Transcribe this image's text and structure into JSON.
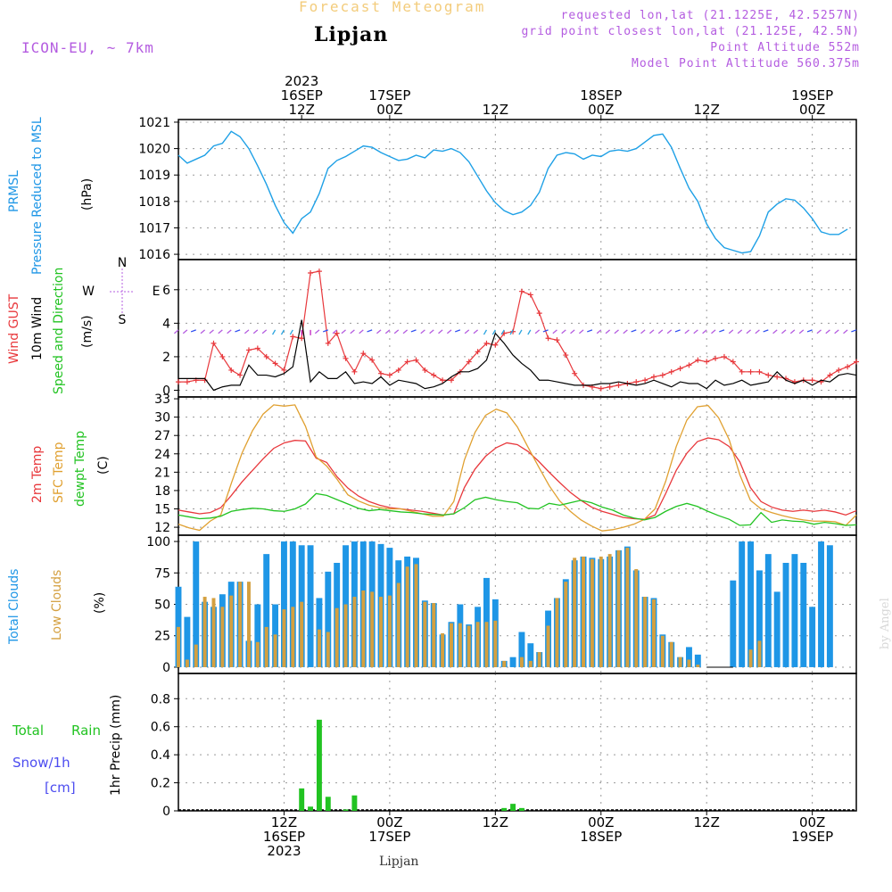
{
  "header": {
    "title": "Forecast Meteogram",
    "location": "Lipjan",
    "model": "ICON-EU, ~ 7km",
    "info": [
      "requested lon,lat (21.1225E, 42.5257N)",
      "grid point closest lon,lat (21.125E, 42.5N)",
      "Point Altitude 552m",
      "Model Point Altitude 560.375m"
    ],
    "watermark": "by Angel",
    "footer_location": "Lipjan"
  },
  "colors": {
    "pressure": "#1ea0e6",
    "gust": "#e8383c",
    "wind": "#000000",
    "temp2m": "#e8383c",
    "sfctemp": "#e0a030",
    "dewpt": "#22c322",
    "total_clouds": "#1e96e6",
    "low_clouds": "#d4a040",
    "rain": "#22c322",
    "snow": "#4c4cf0",
    "purple": "#b45ce0"
  },
  "time_axis_top": [
    {
      "x": 14,
      "lines": [
        "2023",
        "16SEP",
        "12Z"
      ]
    },
    {
      "x": 24,
      "lines": [
        "17SEP",
        "00Z"
      ]
    },
    {
      "x": 36,
      "lines": [
        "12Z"
      ]
    },
    {
      "x": 48,
      "lines": [
        "18SEP",
        "00Z"
      ]
    },
    {
      "x": 60,
      "lines": [
        "12Z"
      ]
    },
    {
      "x": 72,
      "lines": [
        "19SEP",
        "00Z"
      ]
    }
  ],
  "time_axis_bottom": [
    {
      "x": 12,
      "lines": [
        "12Z",
        "16SEP",
        "2023"
      ]
    },
    {
      "x": 24,
      "lines": [
        "00Z",
        "17SEP"
      ]
    },
    {
      "x": 36,
      "lines": [
        "12Z"
      ]
    },
    {
      "x": 48,
      "lines": [
        "00Z",
        "18SEP"
      ]
    },
    {
      "x": 60,
      "lines": [
        "12Z"
      ]
    },
    {
      "x": 72,
      "lines": [
        "00Z",
        "19SEP"
      ]
    }
  ],
  "panel_labels": {
    "pressure": [
      "PRMSL",
      "Pressure Reduced to MSL",
      "(hPa)"
    ],
    "wind": [
      "Wind GUST",
      "10m Wind",
      "Speed and Direction",
      "(m/s)"
    ],
    "compass": [
      "N",
      "S",
      "W",
      "E"
    ],
    "temp": [
      "2m Temp",
      "SFC Temp",
      "dewpt Temp",
      "(C)"
    ],
    "clouds": [
      "Total Clouds",
      "Low Clouds",
      "(%)"
    ],
    "precip": [
      "Total",
      "Rain",
      "Snow/1h",
      "[cm]",
      "1hr Precip (mm)"
    ]
  },
  "chart_data": [
    {
      "type": "line",
      "title": "PRMSL",
      "ylabel": "(hPa)",
      "ylim": [
        1015.8,
        1021.1
      ],
      "yticks": [
        1016,
        1017,
        1018,
        1019,
        1020,
        1021
      ],
      "xlim": [
        0,
        77
      ],
      "x": [
        0,
        1,
        2,
        3,
        4,
        5,
        6,
        7,
        8,
        9,
        10,
        11,
        12,
        13,
        14,
        15,
        16,
        17,
        18,
        19,
        20,
        21,
        22,
        23,
        24,
        25,
        26,
        27,
        28,
        29,
        30,
        31,
        32,
        33,
        34,
        35,
        36,
        37,
        38,
        39,
        40,
        41,
        42,
        43,
        44,
        45,
        46,
        47,
        48,
        49,
        50,
        51,
        52,
        53,
        54,
        55,
        56,
        57,
        58,
        59,
        60,
        61,
        62,
        63,
        64,
        65,
        66,
        67,
        68,
        69,
        70,
        71,
        72,
        73,
        74,
        75,
        76
      ],
      "series": [
        {
          "name": "PRMSL",
          "values": [
            1019.75,
            1019.45,
            1019.6,
            1019.75,
            1020.1,
            1020.2,
            1020.65,
            1020.45,
            1020.0,
            1019.35,
            1018.65,
            1017.85,
            1017.2,
            1016.8,
            1017.35,
            1017.6,
            1018.3,
            1019.25,
            1019.55,
            1019.7,
            1019.9,
            1020.1,
            1020.05,
            1019.85,
            1019.7,
            1019.55,
            1019.6,
            1019.75,
            1019.65,
            1019.95,
            1019.9,
            1020.0,
            1019.85,
            1019.5,
            1018.95,
            1018.4,
            1017.95,
            1017.65,
            1017.5,
            1017.6,
            1017.85,
            1018.35,
            1019.25,
            1019.75,
            1019.85,
            1019.8,
            1019.6,
            1019.75,
            1019.7,
            1019.9,
            1019.95,
            1019.9,
            1020.0,
            1020.25,
            1020.5,
            1020.55,
            1020.05,
            1019.25,
            1018.5,
            1018.0,
            1017.15,
            1016.6,
            1016.25,
            1016.15,
            1016.05,
            1016.1,
            1016.7,
            1017.6,
            1017.9,
            1018.1,
            1018.05,
            1017.75,
            1017.35,
            1016.85,
            1016.75,
            1016.75,
            1016.95
          ]
        }
      ]
    },
    {
      "type": "line",
      "title": "Wind GUST / 10m Wind",
      "ylabel": "(m/s)",
      "ylim": [
        -0.4,
        7.8
      ],
      "yticks": [
        0,
        2,
        4,
        6
      ],
      "xlim": [
        0,
        77
      ],
      "series": [
        {
          "name": "Wind GUST",
          "values": [
            0.5,
            0.5,
            0.6,
            0.6,
            2.8,
            2.0,
            1.2,
            0.9,
            2.4,
            2.5,
            2.0,
            1.6,
            1.2,
            3.2,
            3.1,
            7.0,
            7.1,
            2.8,
            3.4,
            1.9,
            1.1,
            2.2,
            1.8,
            1.0,
            0.9,
            1.2,
            1.7,
            1.8,
            1.2,
            0.9,
            0.6,
            0.6,
            1.1,
            1.7,
            2.3,
            2.8,
            2.7,
            3.4,
            3.5,
            5.9,
            5.7,
            4.6,
            3.1,
            3.0,
            2.1,
            1.0,
            0.3,
            0.2,
            0.1,
            0.2,
            0.3,
            0.4,
            0.5,
            0.6,
            0.8,
            0.9,
            1.1,
            1.3,
            1.5,
            1.8,
            1.7,
            1.9,
            2.0,
            1.7,
            1.1,
            1.1,
            1.1,
            0.9,
            0.8,
            0.7,
            0.5,
            0.6,
            0.6,
            0.5,
            0.9,
            1.2,
            1.4,
            1.7
          ]
        },
        {
          "name": "10m Wind",
          "values": [
            0.7,
            0.7,
            0.7,
            0.7,
            0.0,
            0.2,
            0.3,
            0.3,
            1.5,
            0.9,
            0.9,
            0.8,
            1.0,
            1.4,
            4.2,
            0.5,
            1.1,
            0.7,
            0.7,
            1.1,
            0.4,
            0.5,
            0.4,
            0.8,
            0.3,
            0.6,
            0.5,
            0.4,
            0.1,
            0.2,
            0.4,
            0.8,
            1.1,
            1.1,
            1.3,
            1.8,
            3.4,
            2.8,
            2.1,
            1.6,
            1.2,
            0.6,
            0.6,
            0.5,
            0.4,
            0.3,
            0.3,
            0.3,
            0.4,
            0.4,
            0.5,
            0.4,
            0.3,
            0.4,
            0.6,
            0.4,
            0.2,
            0.5,
            0.4,
            0.4,
            0.1,
            0.6,
            0.3,
            0.4,
            0.6,
            0.3,
            0.4,
            0.5,
            1.1,
            0.6,
            0.4,
            0.6,
            0.3,
            0.6,
            0.5,
            0.9,
            1.0,
            0.9
          ]
        }
      ]
    },
    {
      "type": "line",
      "title": "2m Temp / SFC Temp / dewpt Temp",
      "ylabel": "(C)",
      "ylim": [
        10.7,
        33.3
      ],
      "yticks": [
        12,
        15,
        18,
        21,
        24,
        27,
        30,
        33
      ],
      "xlim": [
        0,
        77
      ],
      "series": [
        {
          "name": "2m Temp",
          "values": [
            14.8,
            14.5,
            14.2,
            14.4,
            15.2,
            17.2,
            19.4,
            21.3,
            23.2,
            24.9,
            25.8,
            26.2,
            26.1,
            23.3,
            22.6,
            20.2,
            18.4,
            17.1,
            16.2,
            15.6,
            15.2,
            15.0,
            14.8,
            14.6,
            14.3,
            14.0,
            14.2,
            18.5,
            21.5,
            23.6,
            25.0,
            25.8,
            25.5,
            24.4,
            22.8,
            21.0,
            19.3,
            17.7,
            16.4,
            15.3,
            14.6,
            14.1,
            13.6,
            13.4,
            13.3,
            14.0,
            17.5,
            21.3,
            24.1,
            26.0,
            26.6,
            26.3,
            25.2,
            22.7,
            18.5,
            16.2,
            15.3,
            14.8,
            14.6,
            14.8,
            14.6,
            14.8,
            14.5,
            14.0,
            14.7
          ]
        },
        {
          "name": "SFC Temp",
          "values": [
            12.5,
            11.9,
            11.5,
            13.0,
            14.0,
            19.2,
            24.1,
            27.8,
            30.5,
            32.0,
            31.8,
            32.0,
            28.5,
            23.5,
            22.0,
            19.8,
            17.3,
            16.3,
            15.6,
            15.2,
            15.0,
            15.0,
            14.6,
            14.2,
            13.8,
            13.8,
            16.2,
            23.0,
            27.5,
            30.3,
            31.3,
            30.7,
            28.4,
            25.1,
            21.9,
            18.8,
            16.3,
            14.6,
            13.2,
            12.2,
            11.4,
            11.6,
            12.0,
            12.5,
            13.3,
            15.0,
            19.5,
            25.2,
            29.5,
            31.7,
            31.9,
            29.9,
            26.3,
            20.6,
            16.4,
            15.0,
            14.4,
            13.9,
            13.5,
            13.2,
            13.0,
            13.0,
            12.9,
            12.3,
            14.0
          ]
        },
        {
          "name": "dewpt Temp",
          "values": [
            14.0,
            13.7,
            13.4,
            13.5,
            13.8,
            14.6,
            14.9,
            15.1,
            15.0,
            14.7,
            14.6,
            15.0,
            15.8,
            17.5,
            17.2,
            16.5,
            15.8,
            15.1,
            14.7,
            14.9,
            14.7,
            14.5,
            14.4,
            14.2,
            14.1,
            14.0,
            14.2,
            15.2,
            16.5,
            16.9,
            16.5,
            16.2,
            16.0,
            15.1,
            15.0,
            15.9,
            15.6,
            16.0,
            16.4,
            16.0,
            15.3,
            14.8,
            14.0,
            13.5,
            13.2,
            13.6,
            14.6,
            15.4,
            15.9,
            15.4,
            14.6,
            13.9,
            13.3,
            12.3,
            12.4,
            14.4,
            12.8,
            13.2,
            13.0,
            12.9,
            12.5,
            12.8,
            12.6,
            12.3,
            12.4
          ]
        }
      ]
    },
    {
      "type": "bar",
      "title": "Total Clouds / Low Clouds",
      "ylabel": "(%)",
      "ylim": [
        -5,
        105
      ],
      "yticks": [
        0,
        25,
        50,
        75,
        100
      ],
      "xlim": [
        0,
        77
      ],
      "series": [
        {
          "name": "Total Clouds",
          "values": [
            64,
            40,
            100,
            52,
            48,
            58,
            68,
            68,
            21,
            50,
            90,
            50,
            100,
            100,
            97,
            97,
            55,
            76,
            83,
            97,
            100,
            100,
            100,
            98,
            95,
            85,
            88,
            87,
            53,
            51,
            26,
            36,
            50,
            34,
            48,
            71,
            54,
            5,
            8,
            28,
            19,
            12,
            45,
            55,
            70,
            85,
            88,
            87,
            86,
            88,
            93,
            96,
            77,
            56,
            55,
            26,
            20,
            8,
            16,
            10,
            0,
            0,
            0,
            69,
            100,
            100,
            77,
            90,
            60,
            83,
            90,
            83,
            48,
            100,
            97
          ]
        },
        {
          "name": "Low Clouds",
          "values": [
            32,
            6,
            18,
            56,
            55,
            48,
            57,
            68,
            68,
            20,
            32,
            26,
            46,
            48,
            52,
            0,
            30,
            28,
            47,
            50,
            56,
            61,
            60,
            56,
            57,
            67,
            80,
            82,
            52,
            51,
            27,
            35,
            35,
            33,
            36,
            36,
            37,
            5,
            0,
            8,
            5,
            12,
            33,
            55,
            68,
            87,
            88,
            86,
            88,
            90,
            93,
            95,
            78,
            56,
            54,
            25,
            20,
            8,
            6,
            2,
            0,
            0,
            0,
            0,
            0,
            14,
            21,
            0,
            0,
            0,
            0,
            0,
            0,
            0,
            0
          ]
        }
      ]
    },
    {
      "type": "bar",
      "title": "1hr Precip",
      "ylabel": "1hr Precip (mm)",
      "ylim": [
        0,
        0.98
      ],
      "yticks": [
        0,
        0.2,
        0.4,
        0.6,
        0.8
      ],
      "xlim": [
        0,
        77
      ],
      "series": [
        {
          "name": "Total Rain",
          "bars": [
            [
              14,
              0.16
            ],
            [
              15,
              0.03
            ],
            [
              16,
              0.65
            ],
            [
              17,
              0.1
            ],
            [
              19,
              0.01
            ],
            [
              20,
              0.11
            ],
            [
              37,
              0.02
            ],
            [
              38,
              0.05
            ],
            [
              39,
              0.02
            ]
          ]
        }
      ]
    }
  ]
}
